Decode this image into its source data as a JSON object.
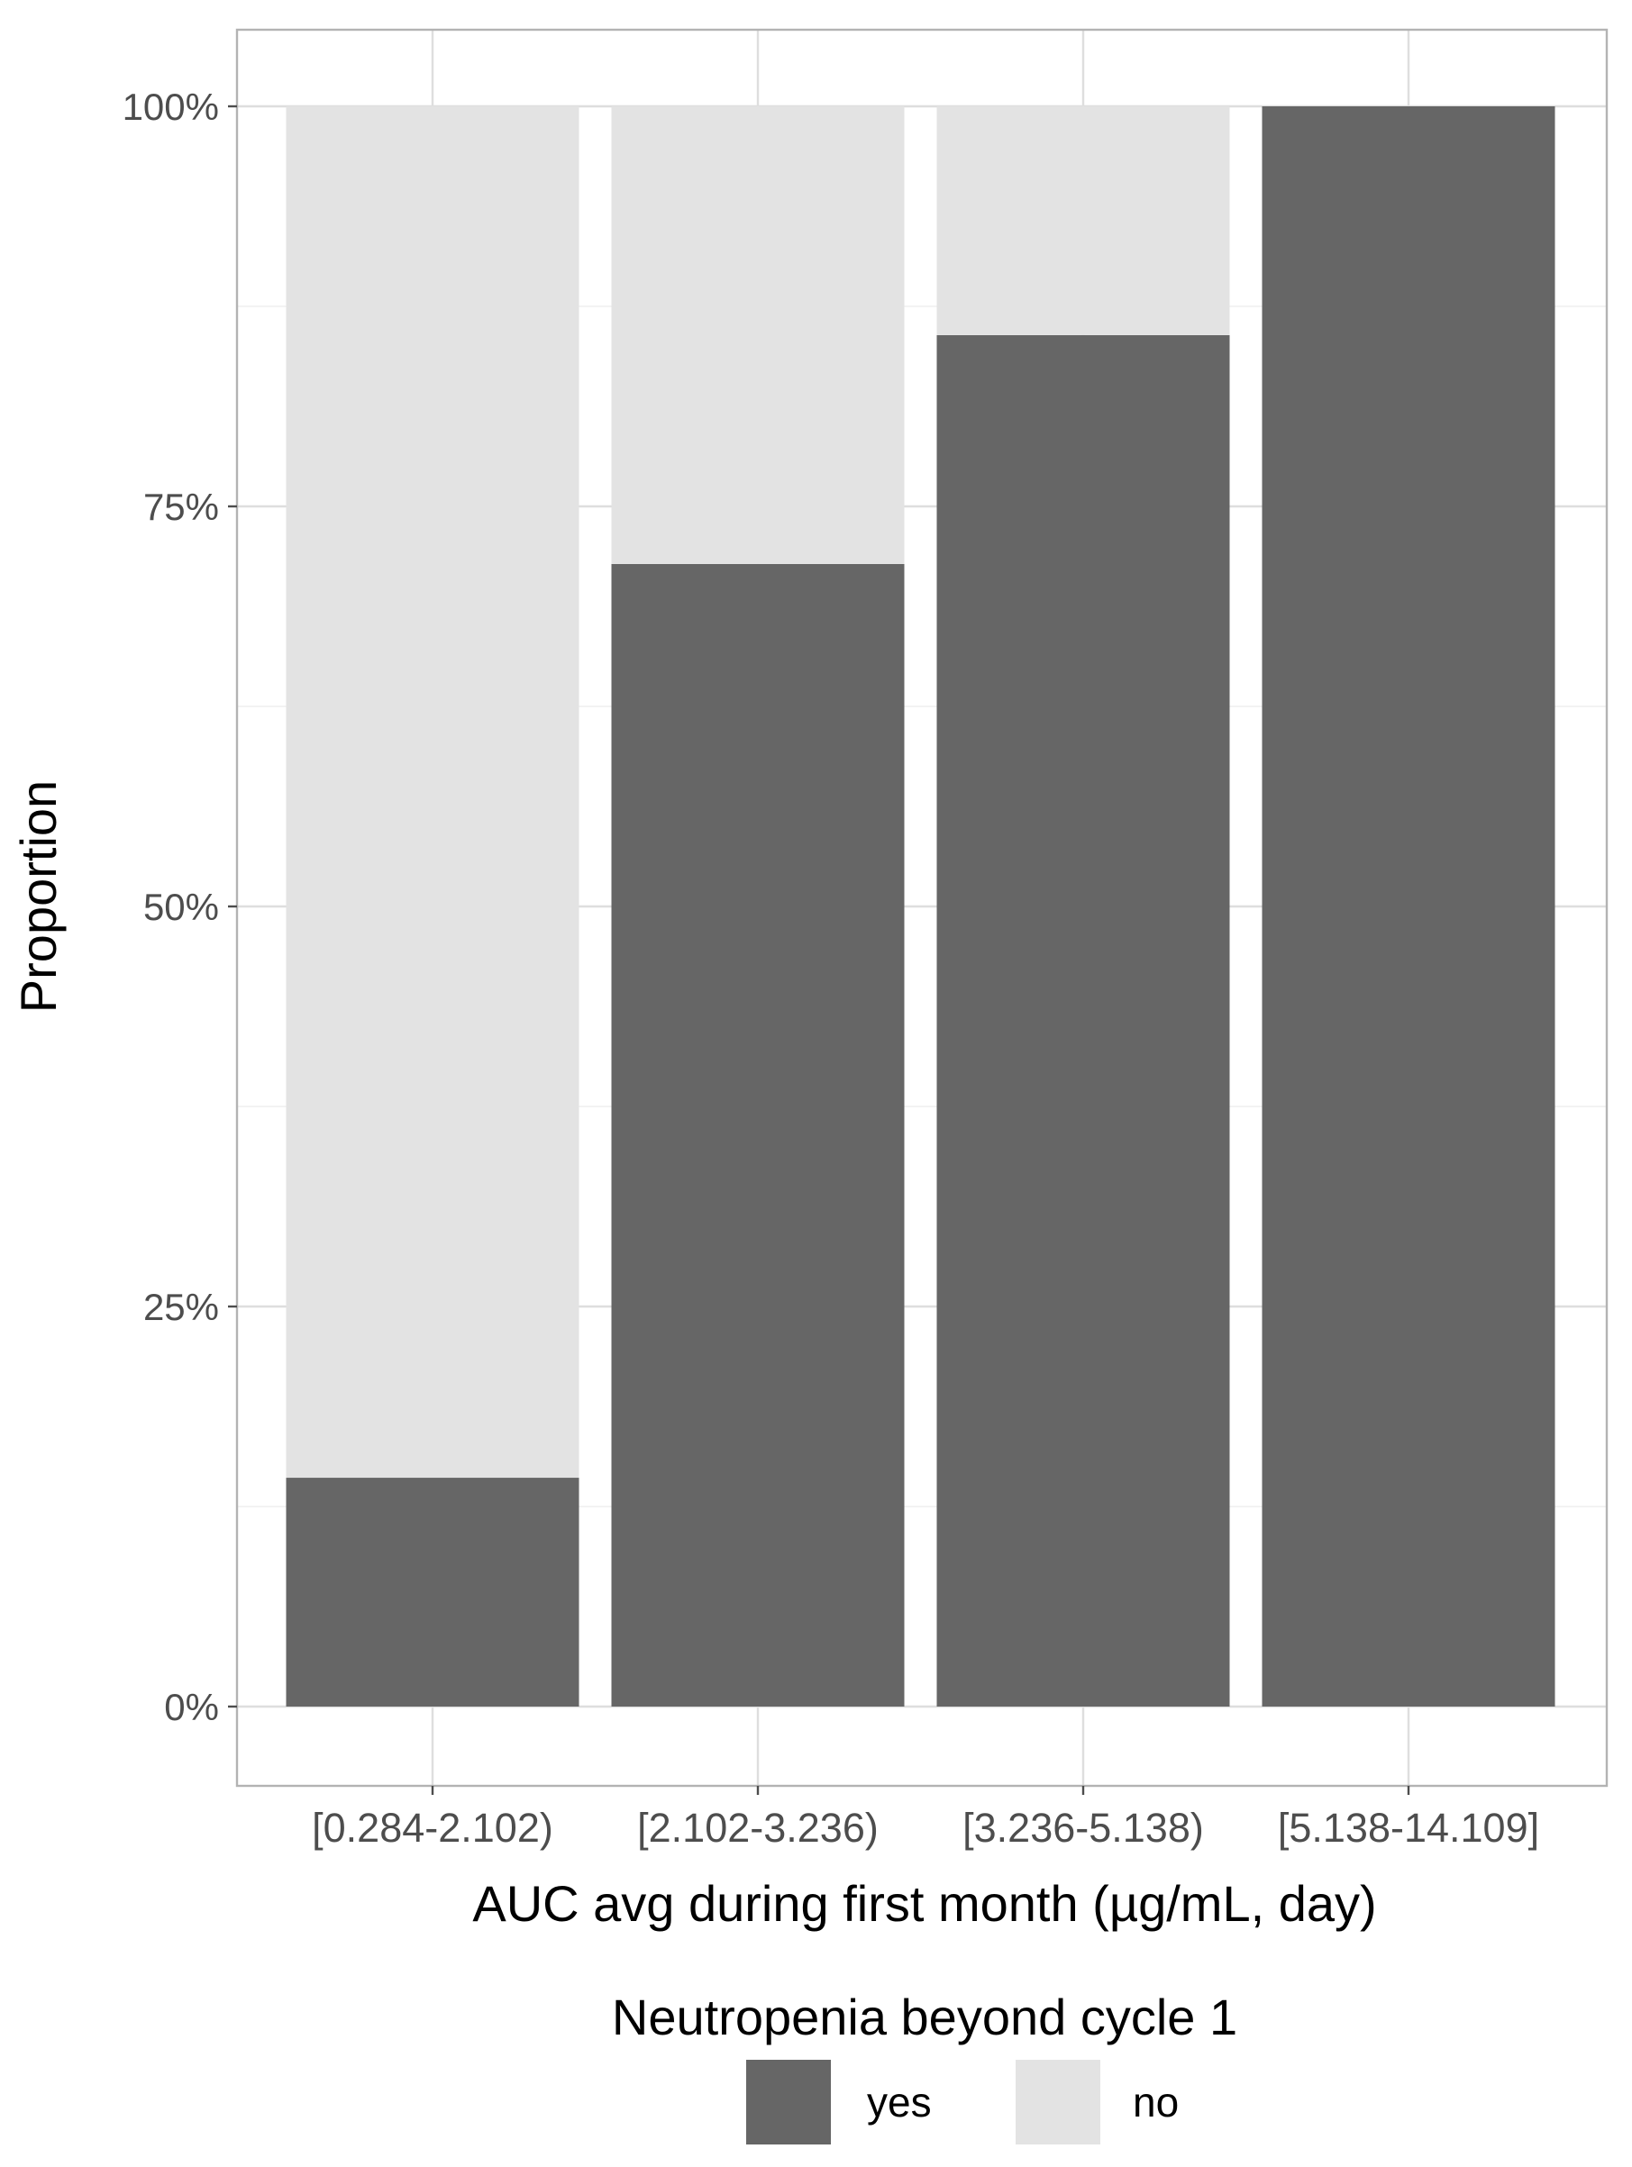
{
  "chart_data": {
    "type": "bar",
    "stacked": true,
    "categories": [
      "[0.284-2.102)",
      "[2.102-3.236)",
      "[3.236-5.138)",
      "[5.138-14.109]"
    ],
    "series": [
      {
        "name": "yes",
        "values": [
          0.143,
          0.714,
          0.857,
          1.0
        ],
        "color": "#666666"
      },
      {
        "name": "no",
        "values": [
          0.857,
          0.286,
          0.143,
          0.0
        ],
        "color": "#e3e3e3"
      }
    ],
    "xlabel": "AUC avg during first month (µg/mL, day)",
    "ylabel": "Proportion",
    "ylim": [
      0,
      1
    ],
    "yticks": [
      0,
      0.25,
      0.5,
      0.75,
      1.0
    ],
    "ytick_labels": [
      "0%",
      "25%",
      "50%",
      "75%",
      "100%"
    ],
    "grid": true,
    "legend": {
      "title": "Neutropenia beyond cycle 1",
      "position": "bottom",
      "entries": [
        "yes",
        "no"
      ]
    }
  },
  "colors": {
    "panel_border": "#b3b3b3",
    "grid_major": "#dedede",
    "grid_minor": "#efefef",
    "tick": "#4d4d4d"
  }
}
